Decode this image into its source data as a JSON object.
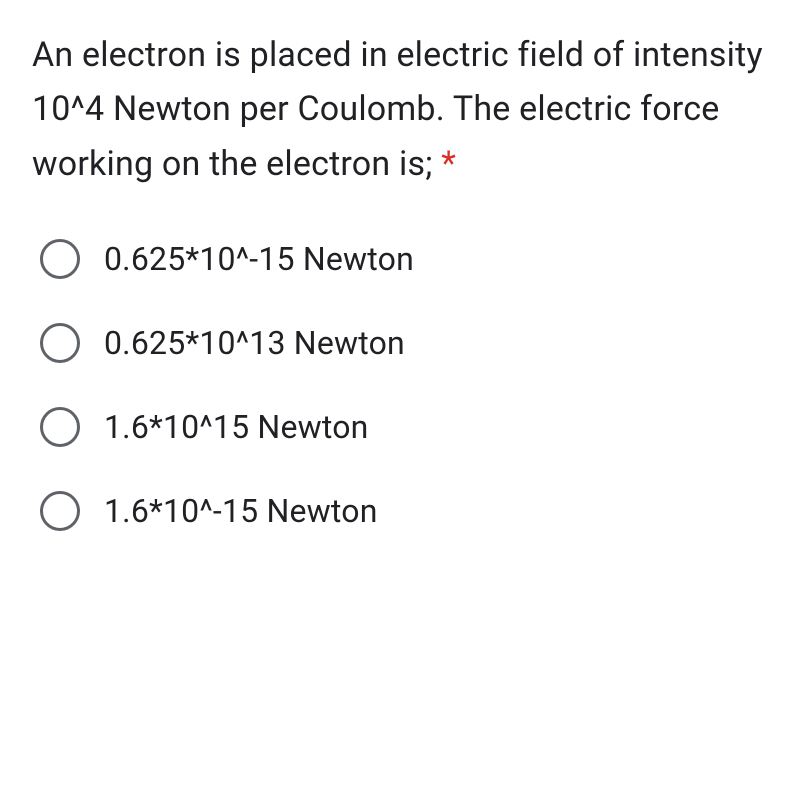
{
  "question": {
    "text": "An electron is placed in electric field of intensity 10^4 Newton per Coulomb. The electric force working on the electron is;",
    "required": true,
    "required_marker": "*"
  },
  "options": [
    {
      "label": "0.625*10^-15 Newton",
      "selected": false
    },
    {
      "label": "0.625*10^13 Newton",
      "selected": false
    },
    {
      "label": "1.6*10^15 Newton",
      "selected": false
    },
    {
      "label": "1.6*10^-15 Newton",
      "selected": false
    }
  ],
  "styling": {
    "background_color": "#ffffff",
    "text_color": "#202124",
    "radio_border_color": "#5f6368",
    "required_color": "#d93025",
    "question_fontsize": 34,
    "option_fontsize": 32,
    "radio_size": 40
  }
}
